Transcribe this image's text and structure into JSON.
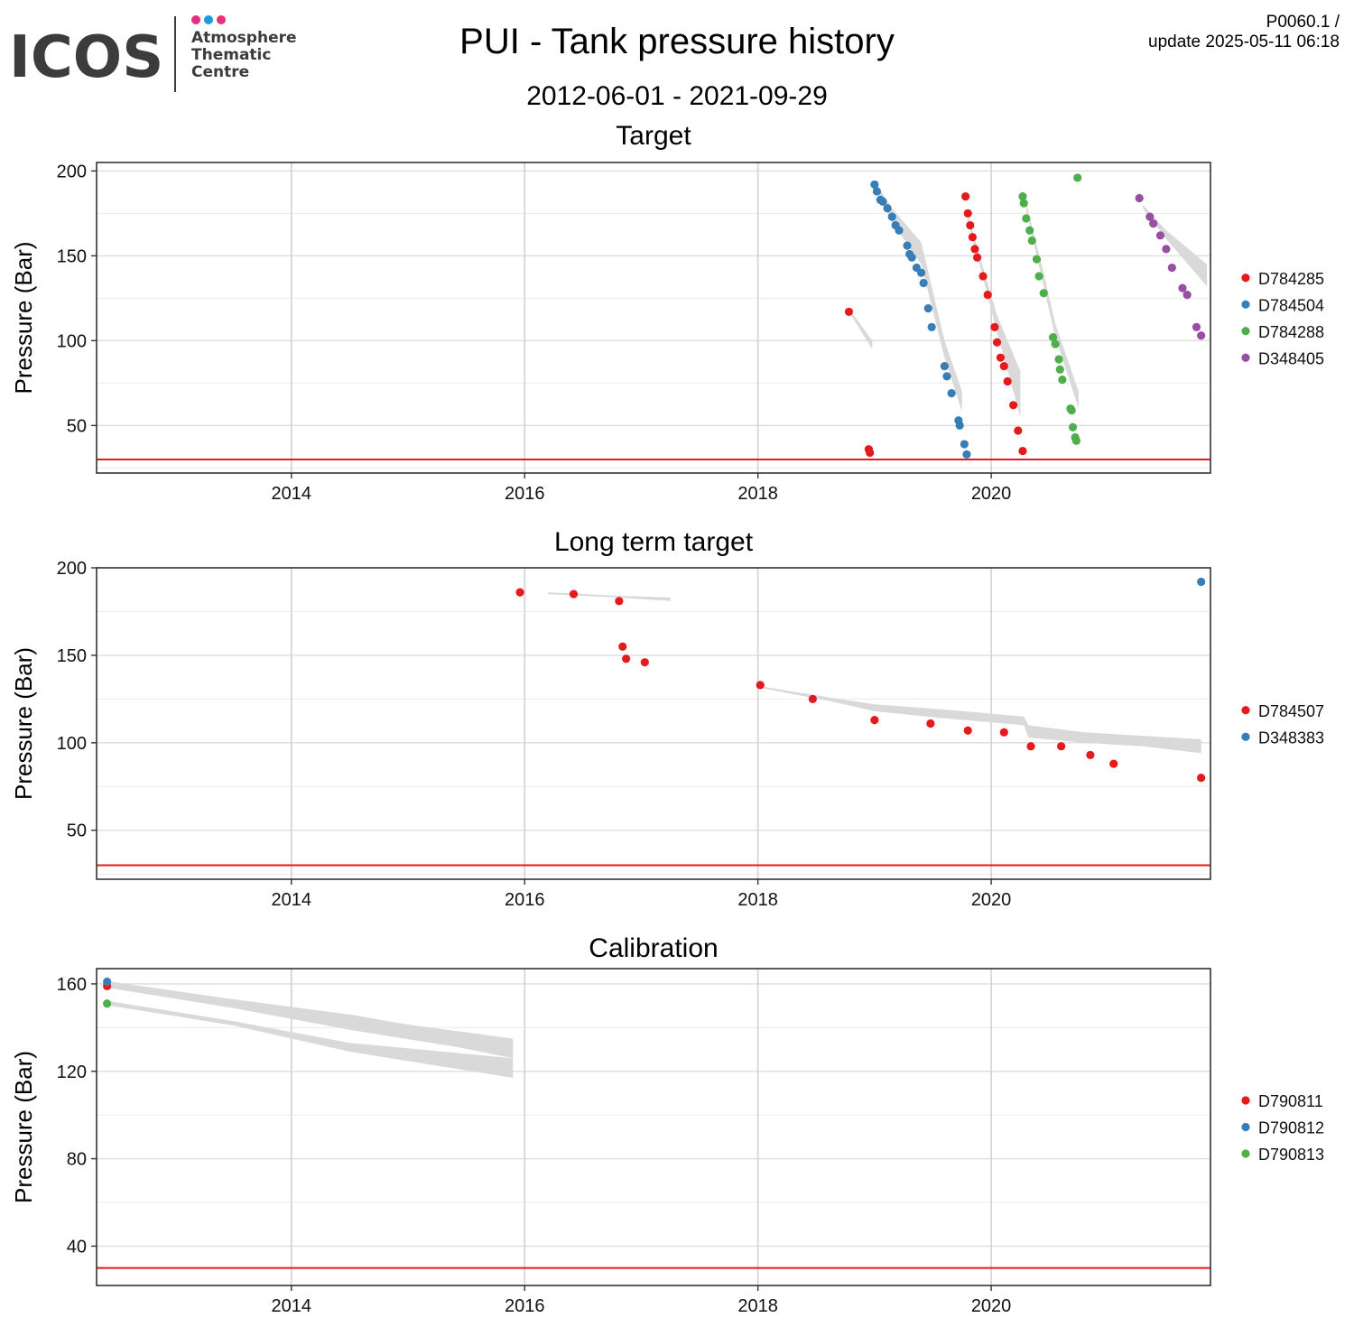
{
  "header": {
    "logo_text": "ICOS",
    "logo_sub": [
      "Atmosphere",
      "Thematic",
      "Centre"
    ],
    "logo_dot_colors": [
      "#e4307a",
      "#1e9be0",
      "#e4307a"
    ],
    "title": "PUI - Tank pressure history",
    "date_range": "2012-06-01 - 2021-09-29",
    "product_code": "P0060.1 /",
    "update_text": "update  2025-05-11 06:18"
  },
  "chart_data": [
    {
      "type": "scatter",
      "title": "Target",
      "ylabel": "Pressure (Bar)",
      "xlabel": "",
      "xlim": [
        2012.33,
        2021.88
      ],
      "ylim": [
        22,
        205
      ],
      "xticks": [
        2014,
        2016,
        2018,
        2020
      ],
      "yticks": [
        50,
        100,
        150,
        200
      ],
      "threshold": 30,
      "threshold_color": "#e41a1c",
      "grid": true,
      "legend_position": "right",
      "series": [
        {
          "name": "D784285",
          "color": "#e41a1c",
          "x": [
            2018.78,
            2018.95,
            2018.96,
            2019.78,
            2019.8,
            2019.82,
            2019.84,
            2019.86,
            2019.88,
            2019.93,
            2019.97,
            2020.03,
            2020.05,
            2020.08,
            2020.11,
            2020.14,
            2020.19,
            2020.23,
            2020.27
          ],
          "y": [
            117,
            36,
            34,
            185,
            175,
            168,
            161,
            154,
            149,
            138,
            127,
            108,
            99,
            90,
            85,
            76,
            62,
            47,
            35
          ]
        },
        {
          "name": "D784504",
          "color": "#377eb8",
          "x": [
            2019.0,
            2019.02,
            2019.05,
            2019.07,
            2019.11,
            2019.15,
            2019.18,
            2019.21,
            2019.28,
            2019.3,
            2019.32,
            2019.36,
            2019.4,
            2019.42,
            2019.46,
            2019.49,
            2019.6,
            2019.62,
            2019.66,
            2019.72,
            2019.73,
            2019.77,
            2019.79
          ],
          "y": [
            192,
            188,
            183,
            182,
            178,
            173,
            168,
            165,
            156,
            151,
            149,
            143,
            140,
            134,
            119,
            108,
            85,
            79,
            69,
            53,
            50,
            39,
            33
          ]
        },
        {
          "name": "D784288",
          "color": "#4daf4a",
          "x": [
            2020.27,
            2020.28,
            2020.3,
            2020.33,
            2020.35,
            2020.39,
            2020.41,
            2020.45,
            2020.53,
            2020.55,
            2020.58,
            2020.59,
            2020.61,
            2020.68,
            2020.69,
            2020.7,
            2020.72,
            2020.73,
            2020.74
          ],
          "y": [
            185,
            181,
            172,
            165,
            159,
            148,
            138,
            128,
            102,
            98,
            89,
            83,
            77,
            60,
            59,
            49,
            43,
            41,
            196
          ]
        },
        {
          "name": "D348405",
          "color": "#984ea3",
          "x": [
            2021.27,
            2021.36,
            2021.39,
            2021.45,
            2021.5,
            2021.55,
            2021.64,
            2021.68,
            2021.76,
            2021.8
          ],
          "y": [
            184,
            173,
            169,
            162,
            154,
            143,
            131,
            127,
            108,
            103
          ]
        }
      ],
      "ranges": [
        {
          "x": [
            2018.8,
            2018.98
          ],
          "upper": [
            117,
            100
          ],
          "lower": [
            115,
            95
          ]
        },
        {
          "x": [
            2019.02,
            2019.15,
            2019.4,
            2019.6,
            2019.75
          ],
          "upper": [
            192,
            178,
            158,
            100,
            70
          ],
          "lower": [
            188,
            170,
            145,
            90,
            58
          ]
        },
        {
          "x": [
            2019.8,
            2019.9,
            2020.05,
            2020.25
          ],
          "upper": [
            175,
            150,
            115,
            82
          ],
          "lower": [
            170,
            145,
            105,
            55
          ]
        },
        {
          "x": [
            2020.3,
            2020.45,
            2020.55,
            2020.75
          ],
          "upper": [
            181,
            140,
            110,
            70
          ],
          "lower": [
            177,
            132,
            102,
            60
          ]
        },
        {
          "x": [
            2021.3,
            2021.5,
            2021.85
          ],
          "upper": [
            180,
            165,
            145
          ],
          "lower": [
            178,
            160,
            132
          ]
        }
      ]
    },
    {
      "type": "scatter",
      "title": "Long term target",
      "ylabel": "Pressure (Bar)",
      "xlabel": "",
      "xlim": [
        2012.33,
        2021.88
      ],
      "ylim": [
        22,
        200
      ],
      "xticks": [
        2014,
        2016,
        2018,
        2020
      ],
      "yticks": [
        50,
        100,
        150,
        200
      ],
      "threshold": 30,
      "threshold_color": "#e41a1c",
      "grid": true,
      "legend_position": "right",
      "series": [
        {
          "name": "D784507",
          "color": "#e41a1c",
          "x": [
            2015.96,
            2016.42,
            2016.81,
            2016.84,
            2016.87,
            2017.03,
            2018.02,
            2018.47,
            2019.0,
            2019.48,
            2019.8,
            2020.11,
            2020.34,
            2020.6,
            2020.85,
            2021.05,
            2021.8
          ],
          "y": [
            186,
            185,
            181,
            155,
            148,
            146,
            133,
            125,
            113,
            111,
            107,
            106,
            98,
            98,
            93,
            88,
            80
          ]
        },
        {
          "name": "D348383",
          "color": "#377eb8",
          "x": [
            2021.8
          ],
          "y": [
            192
          ]
        }
      ],
      "ranges": [
        {
          "x": [
            2016.2,
            2016.8,
            2017.25
          ],
          "upper": [
            186,
            184,
            183
          ],
          "lower": [
            185,
            183,
            181
          ]
        },
        {
          "x": [
            2018.05,
            2018.6,
            2019.0,
            2019.6,
            2020.28,
            2020.32,
            2020.8,
            2021.3,
            2021.8
          ],
          "upper": [
            132,
            126,
            122,
            119,
            115,
            110,
            106,
            104,
            102
          ],
          "lower": [
            131,
            124,
            118,
            114,
            110,
            103,
            100,
            98,
            94
          ]
        }
      ]
    },
    {
      "type": "scatter",
      "title": "Calibration",
      "ylabel": "Pressure (Bar)",
      "xlabel": "",
      "xlim": [
        2012.33,
        2021.88
      ],
      "ylim": [
        22,
        167
      ],
      "xticks": [
        2014,
        2016,
        2018,
        2020
      ],
      "yticks": [
        40,
        80,
        120,
        160
      ],
      "threshold": 30,
      "threshold_color": "#e41a1c",
      "grid": true,
      "legend_position": "right",
      "series": [
        {
          "name": "D790811",
          "color": "#e41a1c",
          "x": [
            2012.42
          ],
          "y": [
            159
          ]
        },
        {
          "name": "D790812",
          "color": "#377eb8",
          "x": [
            2012.42
          ],
          "y": [
            161
          ]
        },
        {
          "name": "D790813",
          "color": "#4daf4a",
          "x": [
            2012.42
          ],
          "y": [
            151
          ]
        }
      ],
      "ranges": [
        {
          "x": [
            2012.45,
            2013.5,
            2014.5,
            2015.9
          ],
          "upper": [
            160,
            152,
            145,
            135
          ],
          "lower": [
            158,
            149,
            139,
            127
          ]
        },
        {
          "x": [
            2012.45,
            2013.5,
            2014.5,
            2015.9
          ],
          "upper": [
            161,
            153,
            146,
            133
          ],
          "lower": [
            159,
            150,
            141,
            126
          ]
        },
        {
          "x": [
            2012.45,
            2013.5,
            2014.5,
            2015.9
          ],
          "upper": [
            152,
            143,
            133,
            126
          ],
          "lower": [
            150,
            141,
            129,
            117
          ]
        }
      ]
    }
  ]
}
